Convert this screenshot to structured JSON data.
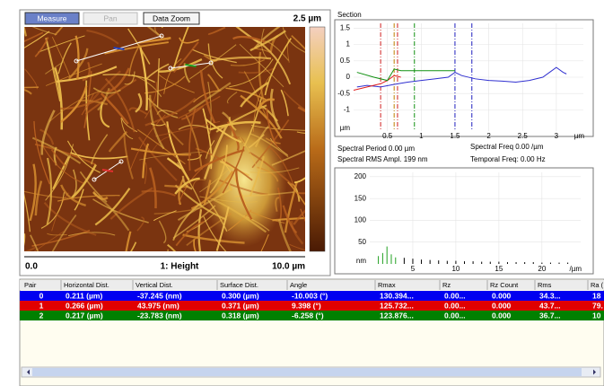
{
  "toolbar": {
    "buttons": [
      "Measure",
      "Pan",
      "Data Zoom"
    ]
  },
  "image": {
    "scale_top": "2.5 µm",
    "left_label": "0.0",
    "channel": "1: Height",
    "right_label": "10.0 µm"
  },
  "section": {
    "title": "Section",
    "type": "line",
    "xlim": [
      0,
      3.4
    ],
    "ylim": [
      -1.65,
      1.65
    ],
    "xticks": [
      0.5,
      1,
      1.5,
      2,
      2.5,
      3
    ],
    "yticks": [
      1.5,
      1,
      0.5,
      0,
      -0.5,
      -1
    ],
    "x_unit": "µm",
    "y_unit": "µm",
    "grid": true,
    "cursors": [
      {
        "x": 0.4,
        "color": "#d02020"
      },
      {
        "x": 0.6,
        "color": "#c08000"
      },
      {
        "x": 0.65,
        "color": "#d02020"
      },
      {
        "x": 0.9,
        "color": "#109010"
      },
      {
        "x": 1.5,
        "color": "#2020c0"
      },
      {
        "x": 1.75,
        "color": "#2020c0"
      }
    ],
    "series": [
      {
        "color": "#3030d0",
        "x": [
          0.05,
          0.2,
          0.4,
          0.6,
          0.8,
          1.0,
          1.2,
          1.4,
          1.5,
          1.6,
          1.8,
          2.0,
          2.2,
          2.4,
          2.6,
          2.8,
          2.9,
          3.0,
          3.1,
          3.15
        ],
        "values": [
          -0.3,
          -0.25,
          -0.3,
          -0.22,
          -0.15,
          -0.1,
          -0.05,
          0.0,
          0.15,
          0.05,
          -0.05,
          -0.1,
          -0.12,
          -0.15,
          -0.1,
          0.0,
          0.15,
          0.3,
          0.15,
          0.1
        ]
      },
      {
        "color": "#e02020",
        "x": [
          0.0,
          0.2,
          0.4,
          0.5,
          0.6,
          0.7
        ],
        "values": [
          -0.4,
          -0.3,
          -0.2,
          -0.1,
          0.05,
          0.0
        ]
      },
      {
        "color": "#109010",
        "x": [
          0.05,
          0.3,
          0.5,
          0.6,
          0.7,
          0.8,
          1.0,
          1.2,
          1.5
        ],
        "values": [
          0.15,
          0.0,
          -0.1,
          0.25,
          0.2,
          0.2,
          0.2,
          0.2,
          0.2
        ]
      }
    ]
  },
  "spectral": {
    "period": "Spectral Period 0.00 µm",
    "freq": "Spectral Freq 0.00 /µm",
    "rms": "Spectral RMS Ampl. 199 nm",
    "temporal": "Temporal Freq: 0.00 Hz"
  },
  "spectrum": {
    "type": "bar",
    "xlim": [
      0,
      24.5
    ],
    "ylim": [
      0,
      210
    ],
    "xticks": [
      5,
      10,
      15,
      20
    ],
    "yticks": [
      200,
      150,
      100,
      50
    ],
    "x_unit": "/µm",
    "y_unit": "nm",
    "grid": true,
    "series": [
      {
        "color": "#20a020",
        "x": [
          1,
          1.5,
          2,
          2.5,
          3
        ],
        "values": [
          18,
          25,
          40,
          22,
          15
        ]
      },
      {
        "color": "#000000",
        "x": [
          4,
          5,
          6,
          7,
          8,
          9,
          10,
          11,
          12,
          13,
          14,
          15,
          16,
          17,
          18,
          19,
          20,
          21,
          22,
          23
        ],
        "values": [
          14,
          12,
          10,
          9,
          8,
          7,
          7,
          6,
          6,
          5,
          5,
          5,
          4,
          4,
          4,
          4,
          3,
          3,
          3,
          3
        ]
      }
    ]
  },
  "table": {
    "header": [
      "Pair",
      "Horizontal Dist.",
      "Vertical Dist.",
      "Surface Dist.",
      "Angle",
      "Rmax",
      "Rz",
      "Rz Count",
      "Rms",
      "Ra ("
    ],
    "rows": [
      {
        "color": "#0000f0",
        "cells": [
          "0",
          "0.211 (µm)",
          "-37.245 (nm)",
          "0.300 (µm)",
          "-10.003 (°)",
          "130.394...",
          "0.00...",
          "0.000",
          "34.3...",
          "18"
        ]
      },
      {
        "color": "#e00000",
        "cells": [
          "1",
          "0.266 (µm)",
          "43.975 (nm)",
          "0.371 (µm)",
          "9.398 (°)",
          "125.732...",
          "0.00...",
          "0.000",
          "43.7...",
          "79."
        ]
      },
      {
        "color": "#008000",
        "cells": [
          "2",
          "0.217 (µm)",
          "-23.783 (nm)",
          "0.318 (µm)",
          "-6.258 (°)",
          "123.876...",
          "0.00...",
          "0.000",
          "36.7...",
          "10"
        ]
      }
    ]
  }
}
